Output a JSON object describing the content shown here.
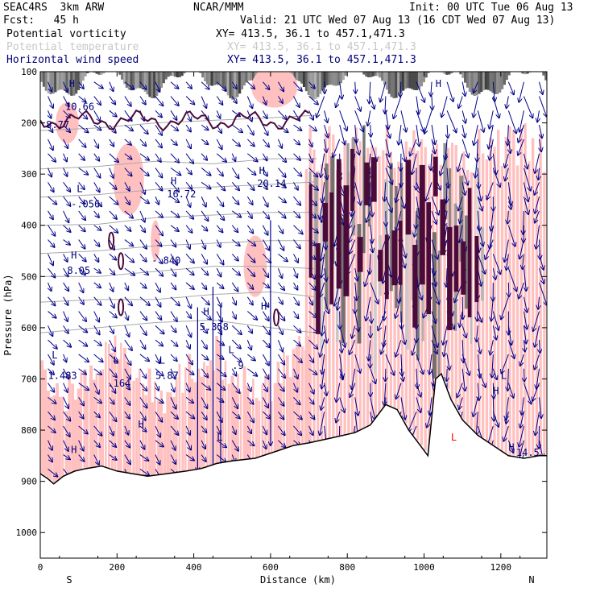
{
  "header": {
    "model": "SEAC4RS  3km ARW",
    "org": "NCAR/MMM",
    "init": "Init: 00 UTC Tue 06 Aug 13",
    "fcst": "Fcst:   45 h",
    "valid": "Valid: 21 UTC Wed 07 Aug 13 (16 CDT Wed 07 Aug 13)",
    "fields": [
      {
        "name": "Potential vorticity",
        "xy": "XY= 413.5, 36.1 to 457.1,471.3",
        "color": "#000000",
        "xy_color": "#000000"
      },
      {
        "name": "Potential temperature",
        "xy": "XY= 413.5, 36.1 to 457.1,471.3",
        "color": "#c8c8c8",
        "xy_color": "#c8c8c8"
      },
      {
        "name": "Horizontal wind speed",
        "xy": "XY= 413.5, 36.1 to 457.1,471.3",
        "color": "#00007a",
        "xy_color": "#00007a"
      }
    ]
  },
  "chart_data": {
    "type": "vertical cross-section",
    "xlabel": "Distance (km)",
    "ylabel": "Pressure (hPa)",
    "xlim": [
      0,
      1320
    ],
    "ylim": [
      1050,
      100
    ],
    "y_scale": "linear, inverted",
    "x_ticks": [
      "0",
      "200",
      "400",
      "600",
      "800",
      "1000",
      "1200"
    ],
    "y_ticks": [
      "100",
      "200",
      "300",
      "400",
      "500",
      "600",
      "700",
      "800",
      "900",
      "1000"
    ],
    "endpoint_labels": {
      "left": "S",
      "right": "N"
    },
    "colors": {
      "pv_positive": "#ffc0c0",
      "pv_strong": "#4a0a3a",
      "theta": "#a8a8a8",
      "wind": "#00008a",
      "terrain": "#000000"
    },
    "terrain_hpa": [
      {
        "x": 0,
        "p": 885
      },
      {
        "x": 20,
        "p": 895
      },
      {
        "x": 35,
        "p": 905
      },
      {
        "x": 60,
        "p": 890
      },
      {
        "x": 90,
        "p": 880
      },
      {
        "x": 120,
        "p": 875
      },
      {
        "x": 160,
        "p": 870
      },
      {
        "x": 200,
        "p": 880
      },
      {
        "x": 240,
        "p": 885
      },
      {
        "x": 280,
        "p": 890
      },
      {
        "x": 330,
        "p": 885
      },
      {
        "x": 380,
        "p": 880
      },
      {
        "x": 420,
        "p": 875
      },
      {
        "x": 460,
        "p": 865
      },
      {
        "x": 500,
        "p": 860
      },
      {
        "x": 560,
        "p": 855
      },
      {
        "x": 620,
        "p": 840
      },
      {
        "x": 660,
        "p": 830
      },
      {
        "x": 700,
        "p": 825
      },
      {
        "x": 760,
        "p": 815
      },
      {
        "x": 820,
        "p": 805
      },
      {
        "x": 860,
        "p": 790
      },
      {
        "x": 900,
        "p": 750
      },
      {
        "x": 930,
        "p": 760
      },
      {
        "x": 960,
        "p": 800
      },
      {
        "x": 990,
        "p": 830
      },
      {
        "x": 1010,
        "p": 850
      },
      {
        "x": 1030,
        "p": 700
      },
      {
        "x": 1045,
        "p": 690
      },
      {
        "x": 1070,
        "p": 740
      },
      {
        "x": 1100,
        "p": 780
      },
      {
        "x": 1140,
        "p": 810
      },
      {
        "x": 1180,
        "p": 830
      },
      {
        "x": 1220,
        "p": 850
      },
      {
        "x": 1260,
        "p": 855
      },
      {
        "x": 1300,
        "p": 850
      },
      {
        "x": 1320,
        "p": 850
      }
    ],
    "theta_levels_hpa": [
      [
        [
          0,
          215
        ],
        [
          150,
          210
        ],
        [
          300,
          200
        ],
        [
          450,
          195
        ],
        [
          600,
          190
        ],
        [
          720,
          185
        ]
      ],
      [
        [
          0,
          290
        ],
        [
          150,
          285
        ],
        [
          300,
          275
        ],
        [
          450,
          280
        ],
        [
          600,
          270
        ],
        [
          720,
          270
        ]
      ],
      [
        [
          0,
          345
        ],
        [
          150,
          340
        ],
        [
          300,
          330
        ],
        [
          450,
          325
        ],
        [
          600,
          320
        ],
        [
          720,
          315
        ]
      ],
      [
        [
          0,
          400
        ],
        [
          150,
          398
        ],
        [
          300,
          385
        ],
        [
          450,
          380
        ],
        [
          600,
          375
        ],
        [
          720,
          375
        ]
      ],
      [
        [
          0,
          455
        ],
        [
          150,
          450
        ],
        [
          300,
          440
        ],
        [
          450,
          435
        ],
        [
          600,
          430
        ],
        [
          720,
          430
        ]
      ],
      [
        [
          0,
          500
        ],
        [
          150,
          500
        ],
        [
          300,
          490
        ],
        [
          450,
          480
        ],
        [
          600,
          480
        ],
        [
          720,
          485
        ]
      ],
      [
        [
          0,
          550
        ],
        [
          150,
          545
        ],
        [
          300,
          545
        ],
        [
          450,
          535
        ],
        [
          600,
          530
        ],
        [
          720,
          540
        ]
      ],
      [
        [
          0,
          610
        ],
        [
          150,
          600
        ],
        [
          300,
          590
        ],
        [
          450,
          585
        ],
        [
          600,
          600
        ],
        [
          720,
          610
        ]
      ]
    ],
    "annotations": [
      {
        "text": "H",
        "x": 75,
        "p": 130,
        "color": "#00007a"
      },
      {
        "text": "10.66",
        "x": 65,
        "p": 175,
        "color": "#00007a"
      },
      {
        "text": "8.77",
        "x": 15,
        "p": 210,
        "color": "#00007a"
      },
      {
        "text": "L",
        "x": 95,
        "p": 335,
        "color": "#00007a"
      },
      {
        "text": "-.056",
        "x": 80,
        "p": 365,
        "color": "#00007a"
      },
      {
        "text": "H",
        "x": 80,
        "p": 465,
        "color": "#00007a"
      },
      {
        "text": "8.05",
        "x": 70,
        "p": 495,
        "color": "#00007a"
      },
      {
        "text": "H",
        "x": 340,
        "p": 320,
        "color": "#00007a"
      },
      {
        "text": "16.72",
        "x": 330,
        "p": 345,
        "color": "#00007a"
      },
      {
        "text": "H",
        "x": 570,
        "p": 300,
        "color": "#00007a"
      },
      {
        "text": "20.14",
        "x": 565,
        "p": 325,
        "color": "#00007a"
      },
      {
        "text": "-.840",
        "x": 290,
        "p": 475,
        "color": "#00007a"
      },
      {
        "text": "H",
        "x": 425,
        "p": 575,
        "color": "#00007a"
      },
      {
        "text": "5.358",
        "x": 415,
        "p": 605,
        "color": "#00007a"
      },
      {
        "text": "H",
        "x": 575,
        "p": 565,
        "color": "#00007a"
      },
      {
        "text": "L",
        "x": 30,
        "p": 660,
        "color": "#00007a"
      },
      {
        "text": "1.483",
        "x": 20,
        "p": 700,
        "color": "#00007a"
      },
      {
        "text": "L",
        "x": 190,
        "p": 670,
        "color": "#00007a"
      },
      {
        "text": ".164",
        "x": 175,
        "p": 715,
        "color": "#00007a"
      },
      {
        "text": "L",
        "x": 310,
        "p": 670,
        "color": "#00007a"
      },
      {
        "text": "5.87",
        "x": 300,
        "p": 700,
        "color": "#00007a"
      },
      {
        "text": "L",
        "x": 490,
        "p": 650,
        "color": "#00007a"
      },
      {
        "text": ".9",
        "x": 500,
        "p": 680,
        "color": "#00007a"
      },
      {
        "text": "H",
        "x": 255,
        "p": 795,
        "color": "#00007a"
      },
      {
        "text": "H",
        "x": 80,
        "p": 845,
        "color": "#00007a"
      },
      {
        "text": "L",
        "x": 460,
        "p": 820,
        "color": "#00007a"
      },
      {
        "text": "L",
        "x": 1200,
        "p": 700,
        "color": "#00007a"
      },
      {
        "text": "H",
        "x": 1180,
        "p": 730,
        "color": "#00007a"
      },
      {
        "text": "L",
        "x": 1070,
        "p": 820,
        "color": "#ff0000"
      },
      {
        "text": "H",
        "x": 1220,
        "p": 840,
        "color": "#00007a"
      },
      {
        "text": "14.5",
        "x": 1240,
        "p": 850,
        "color": "#00007a"
      },
      {
        "text": "H",
        "x": 1030,
        "p": 130,
        "color": "#00007a"
      }
    ]
  }
}
